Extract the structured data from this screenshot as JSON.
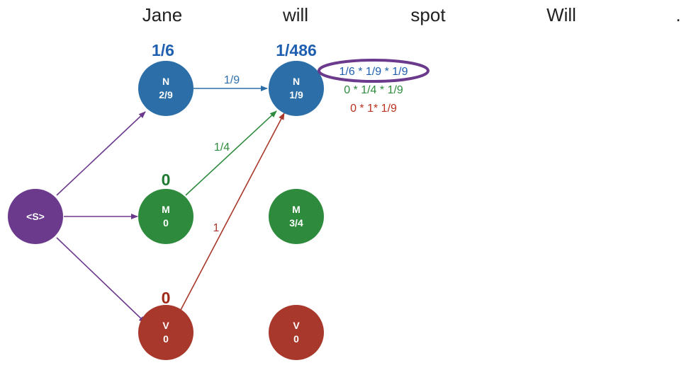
{
  "colors": {
    "noun": "#2b6ea8",
    "modal": "#2e8b3e",
    "verb": "#a8382b",
    "start": "#6b3a8c",
    "score_noun": "#1f5fb0",
    "score_modal": "#1e7a32",
    "score_verb": "#a02818",
    "calc_noun": "#1f5fb0",
    "calc_modal": "#2e8b3e",
    "calc_verb": "#b8321f",
    "ellipse": "#6b3a8c"
  },
  "sentence": [
    "Jane",
    "will",
    "spot",
    "Will",
    "."
  ],
  "start_node": {
    "label": "<S>"
  },
  "column1": {
    "N": {
      "tag": "N",
      "value": "2/9",
      "score": "1/6"
    },
    "M": {
      "tag": "M",
      "value": "0",
      "score": "0"
    },
    "V": {
      "tag": "V",
      "value": "0",
      "score": "0"
    }
  },
  "column2": {
    "N": {
      "tag": "N",
      "value": "1/9",
      "score": "1/486"
    },
    "M": {
      "tag": "M",
      "value": "3/4"
    },
    "V": {
      "tag": "V",
      "value": "0"
    }
  },
  "edge_labels": {
    "n_to_n": "1/9",
    "m_to_n": "1/4",
    "v_to_n": "1"
  },
  "calculations": {
    "from_noun": "1/6 * 1/9 * 1/9",
    "from_modal": "0 * 1/4 * 1/9",
    "from_verb": "0 * 1* 1/9"
  }
}
